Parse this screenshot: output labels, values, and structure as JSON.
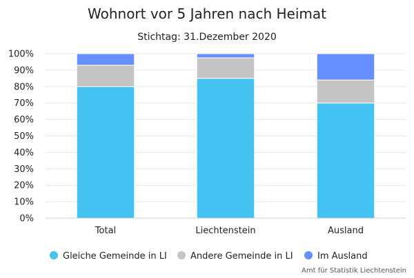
{
  "chart_data": {
    "type": "bar",
    "stacked": true,
    "title": "Wohnort vor 5 Jahren nach Heimat",
    "subtitle": "Stichtag: 31.Dezember 2020",
    "categories": [
      "Total",
      "Liechtenstein",
      "Ausland"
    ],
    "series": [
      {
        "name": "Gleiche Gemeinde in LI",
        "values": [
          80,
          85,
          70
        ],
        "color": "#44c2f2"
      },
      {
        "name": "Andere Gemeinde in LI",
        "values": [
          13,
          12.5,
          14
        ],
        "color": "#c4c4c4"
      },
      {
        "name": "Im Ausland",
        "values": [
          7,
          2.5,
          16
        ],
        "color": "#6690ff"
      }
    ],
    "yticks": [
      "0%",
      "10%",
      "20%",
      "30%",
      "40%",
      "50%",
      "60%",
      "70%",
      "80%",
      "90%",
      "100%"
    ],
    "ylim": [
      0,
      100
    ],
    "grid": true,
    "legend_position": "bottom",
    "source": "Amt für Statistik Liechtenstein"
  }
}
